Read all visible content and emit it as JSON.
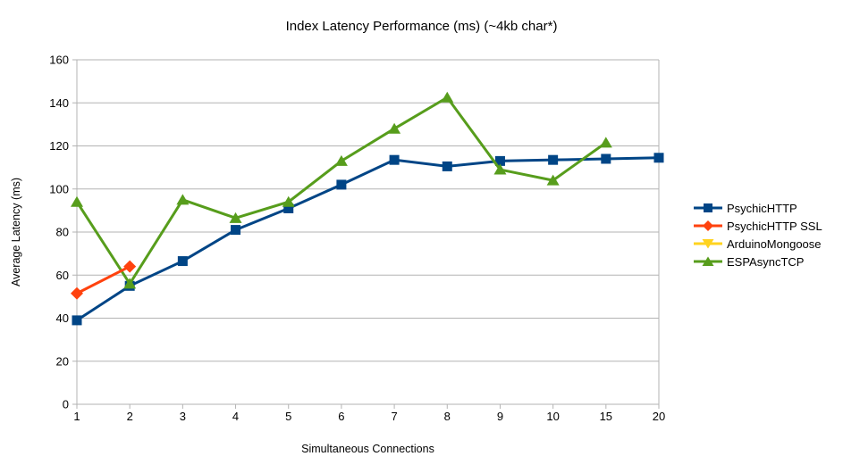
{
  "chart_data": {
    "type": "line",
    "title": "Index Latency Performance (ms) (~4kb char*)",
    "xlabel": "Simultaneous Connections",
    "ylabel": "Average Latency (ms)",
    "categories": [
      "1",
      "2",
      "3",
      "4",
      "5",
      "6",
      "7",
      "8",
      "9",
      "10",
      "15",
      "20"
    ],
    "ylim": [
      0,
      160
    ],
    "ytick_interval": 20,
    "grid": "horizontal",
    "grid_color": "#b3b3b3",
    "legend_position": "right",
    "series": [
      {
        "name": "PsychicHTTP",
        "color": "#004586",
        "marker": "square",
        "values": [
          39,
          55,
          66.5,
          81,
          91,
          102,
          113.5,
          110.5,
          113,
          113.5,
          114,
          114.5
        ]
      },
      {
        "name": "PsychicHTTP SSL",
        "color": "#FF420E",
        "marker": "diamond",
        "values": [
          51.5,
          64,
          null,
          null,
          null,
          null,
          null,
          null,
          null,
          null,
          null,
          null
        ]
      },
      {
        "name": "ArduinoMongoose",
        "color": "#FFD320",
        "marker": "triangle-down",
        "values": [
          null,
          null,
          null,
          null,
          null,
          null,
          null,
          null,
          null,
          null,
          null,
          null
        ]
      },
      {
        "name": "ESPAsyncTCP",
        "color": "#579D1C",
        "marker": "triangle-up",
        "values": [
          94,
          56,
          95,
          86.5,
          94,
          113,
          128,
          142.5,
          109,
          104,
          121.5,
          null
        ]
      }
    ]
  }
}
